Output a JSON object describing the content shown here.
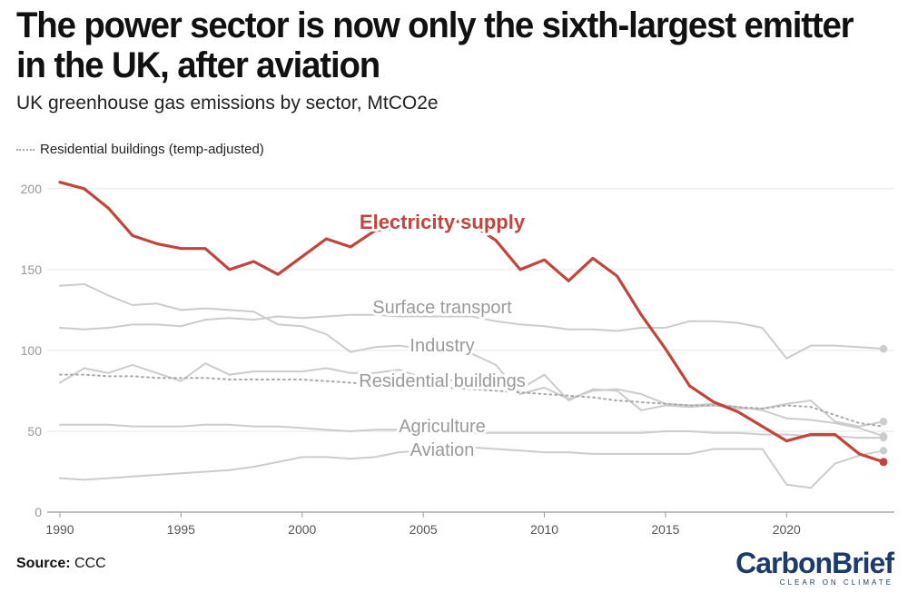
{
  "title": "The power sector is now only the sixth-largest emitter in the UK, after aviation",
  "subtitle": "UK greenhouse gas emissions by sector, MtCO2e",
  "legend_label": "Residential buildings (temp-adjusted)",
  "source_label": "Source:",
  "source_value": "CCC",
  "brand_name": "CarbonBrief",
  "brand_tagline": "CLEAR ON CLIMATE",
  "colors": {
    "highlight": "#c1453a",
    "muted": "#cccccc",
    "grid": "#e6e6e6",
    "axis": "#999999"
  },
  "chart_data": {
    "type": "line",
    "title": "The power sector is now only the sixth-largest emitter in the UK, after aviation",
    "xlabel": "",
    "ylabel": "MtCO2e",
    "xlim": [
      1990,
      2024
    ],
    "ylim": [
      0,
      210
    ],
    "x_ticks": [
      1990,
      1995,
      2000,
      2005,
      2010,
      2015,
      2020
    ],
    "y_ticks": [
      0,
      50,
      100,
      150,
      200
    ],
    "x": [
      1990,
      1991,
      1992,
      1993,
      1994,
      1995,
      1996,
      1997,
      1998,
      1999,
      2000,
      2001,
      2002,
      2003,
      2004,
      2005,
      2006,
      2007,
      2008,
      2009,
      2010,
      2011,
      2012,
      2013,
      2014,
      2015,
      2016,
      2017,
      2018,
      2019,
      2020,
      2021,
      2022,
      2023,
      2024
    ],
    "series": [
      {
        "name": "Electricity supply",
        "highlight": true,
        "end_marker": true,
        "values": [
          204,
          200,
          188,
          171,
          166,
          163,
          163,
          150,
          155,
          147,
          158,
          169,
          164,
          174,
          176,
          178,
          181,
          178,
          168,
          150,
          156,
          143,
          157,
          146,
          122,
          101,
          78,
          68,
          62,
          53,
          44,
          48,
          48,
          36,
          31
        ]
      },
      {
        "name": "Surface transport",
        "end_marker": true,
        "values": [
          114,
          113,
          114,
          116,
          116,
          115,
          119,
          120,
          119,
          121,
          120,
          121,
          122,
          122,
          121,
          121,
          121,
          121,
          118,
          116,
          115,
          113,
          113,
          112,
          114,
          114,
          118,
          118,
          117,
          114,
          95,
          103,
          103,
          102,
          101
        ]
      },
      {
        "name": "Industry",
        "end_marker": true,
        "values": [
          140,
          141,
          134,
          128,
          129,
          125,
          126,
          125,
          124,
          116,
          115,
          110,
          99,
          102,
          103,
          101,
          100,
          98,
          91,
          73,
          77,
          70,
          75,
          76,
          73,
          67,
          66,
          67,
          65,
          63,
          58,
          57,
          55,
          52,
          47
        ]
      },
      {
        "name": "Residential buildings",
        "end_marker": true,
        "values": [
          80,
          89,
          86,
          91,
          86,
          81,
          92,
          85,
          87,
          87,
          87,
          89,
          86,
          86,
          88,
          83,
          82,
          79,
          81,
          76,
          85,
          69,
          76,
          75,
          63,
          66,
          65,
          66,
          64,
          64,
          67,
          69,
          56,
          53,
          56
        ]
      },
      {
        "name": "Residential buildings (temp-adjusted)",
        "dotted": true,
        "values": [
          85,
          85,
          84,
          84,
          83,
          83,
          83,
          82,
          82,
          82,
          82,
          81,
          80,
          79,
          79,
          78,
          77,
          76,
          75,
          74,
          73,
          72,
          71,
          69,
          68,
          67,
          66,
          66,
          65,
          64,
          66,
          65,
          60,
          55,
          53
        ]
      },
      {
        "name": "Agriculture",
        "end_marker": true,
        "values": [
          54,
          54,
          54,
          53,
          53,
          53,
          54,
          54,
          53,
          53,
          52,
          51,
          50,
          51,
          51,
          50,
          50,
          49,
          49,
          49,
          49,
          49,
          49,
          49,
          49,
          50,
          50,
          49,
          49,
          48,
          48,
          47,
          47,
          46,
          46
        ]
      },
      {
        "name": "Aviation",
        "end_marker": true,
        "values": [
          21,
          20,
          21,
          22,
          23,
          24,
          25,
          26,
          28,
          31,
          34,
          34,
          33,
          34,
          37,
          38,
          40,
          40,
          39,
          38,
          37,
          37,
          36,
          36,
          36,
          36,
          36,
          39,
          39,
          39,
          17,
          15,
          30,
          35,
          38
        ]
      }
    ],
    "annotations": [
      {
        "text": "Electricity supply",
        "series": "Electricity supply"
      },
      {
        "text": "Surface transport",
        "series": "Surface transport"
      },
      {
        "text": "Industry",
        "series": "Industry"
      },
      {
        "text": "Residential buildings",
        "series": "Residential buildings"
      },
      {
        "text": "Agriculture",
        "series": "Agriculture"
      },
      {
        "text": "Aviation",
        "series": "Aviation"
      }
    ]
  }
}
